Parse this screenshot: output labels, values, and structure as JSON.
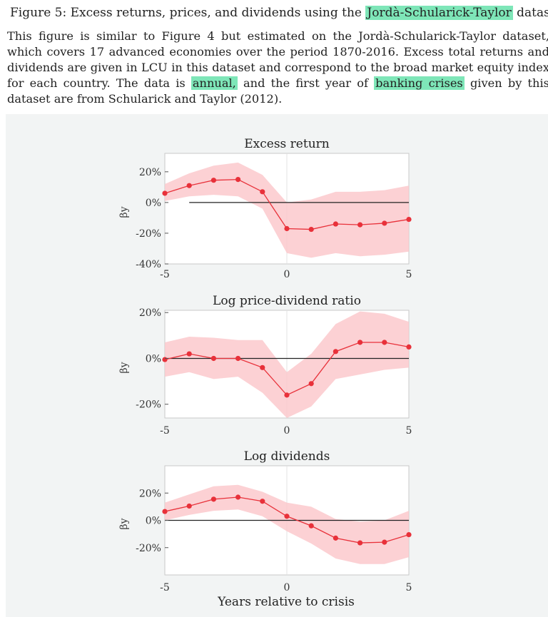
{
  "caption": {
    "prefix": "Figure 5: Excess returns, prices, and dividends using the ",
    "highlight": "Jordà-Schularick-Taylor",
    "suffix": " dataset"
  },
  "description": {
    "line1": "This figure is similar to Figure 4 but estimated on the Jordà-Schularick-Taylor dataset, which covers",
    "line2": "17 advanced economies over the period 1870-2016. Excess total returns and dividends are given in",
    "line3": "LCU in this dataset and correspond to the broad market equity index for each country. The data",
    "line4_a": "is ",
    "line4_hl1": "annual,",
    "line4_b": " and the first year of ",
    "line4_hl2": "banking crises",
    "line4_c": " given by this dataset are from Schularick and Taylor",
    "line5": "(2012)."
  },
  "figure": {
    "xlabel": "Years relative to crisis",
    "ylabel": "βy",
    "colors": {
      "line": "#e8313a",
      "band": "#fcc9cd",
      "zero": "#222222"
    }
  },
  "chart_data": [
    {
      "type": "line",
      "title": "Excess return",
      "x": [
        -5,
        -4,
        -3,
        -2,
        -1,
        0,
        1,
        2,
        3,
        4,
        5
      ],
      "series": [
        {
          "values": [
            6,
            11,
            14.5,
            15,
            7,
            -17,
            -17.5,
            -14,
            -14.5,
            -13.5,
            -11
          ]
        }
      ],
      "band_upper": [
        12,
        19,
        24,
        26,
        18,
        0,
        2,
        7,
        7,
        8,
        11
      ],
      "band_lower": [
        1,
        4,
        5,
        4,
        -4,
        -33,
        -36,
        -33,
        -35,
        -34,
        -32
      ],
      "xlim": [
        -5,
        5
      ],
      "ylim": [
        -40,
        32
      ],
      "xticks": [
        "-5",
        "0",
        "5"
      ],
      "yticks": [
        {
          "v": 20,
          "label": "20%"
        },
        {
          "v": 0,
          "label": "0%"
        },
        {
          "v": -20,
          "label": "-20%"
        },
        {
          "v": -40,
          "label": "-40%"
        }
      ]
    },
    {
      "type": "line",
      "title": "Log price-dividend ratio",
      "x": [
        -5,
        -4,
        -3,
        -2,
        -1,
        0,
        1,
        2,
        3,
        4,
        5
      ],
      "series": [
        {
          "values": [
            -0.5,
            2,
            0,
            0,
            -4,
            -16,
            -11,
            3,
            7,
            7,
            5
          ]
        }
      ],
      "band_upper": [
        7,
        9.5,
        9,
        8,
        8,
        -6,
        2,
        15,
        20.5,
        19.5,
        16
      ],
      "band_lower": [
        -8,
        -6,
        -9,
        -8,
        -15,
        -26,
        -21,
        -9,
        -7,
        -5,
        -4
      ],
      "xlim": [
        -5,
        5
      ],
      "ylim": [
        -26,
        21
      ],
      "xticks": [
        "-5",
        "0",
        "5"
      ],
      "yticks": [
        {
          "v": 20,
          "label": "20%"
        },
        {
          "v": 0,
          "label": "0%"
        },
        {
          "v": -20,
          "label": "-20%"
        }
      ]
    },
    {
      "type": "line",
      "title": "Log dividends",
      "x": [
        -5,
        -4,
        -3,
        -2,
        -1,
        0,
        1,
        2,
        3,
        4,
        5
      ],
      "series": [
        {
          "values": [
            6.5,
            10.5,
            15.5,
            17,
            14,
            3,
            -4,
            -13,
            -16.5,
            -16,
            -10.5
          ]
        }
      ],
      "band_upper": [
        13,
        19,
        25,
        26,
        21,
        13,
        10,
        1,
        -1,
        0,
        7
      ],
      "band_lower": [
        0,
        4,
        7,
        8,
        3,
        -8,
        -17,
        -28,
        -32,
        -32,
        -27
      ],
      "xlim": [
        -5,
        5
      ],
      "ylim": [
        -40,
        40
      ],
      "xticks": [
        "-5",
        "0",
        "5"
      ],
      "yticks": [
        {
          "v": 20,
          "label": "20%"
        },
        {
          "v": 0,
          "label": "0%"
        },
        {
          "v": -20,
          "label": "-20%"
        }
      ]
    }
  ]
}
